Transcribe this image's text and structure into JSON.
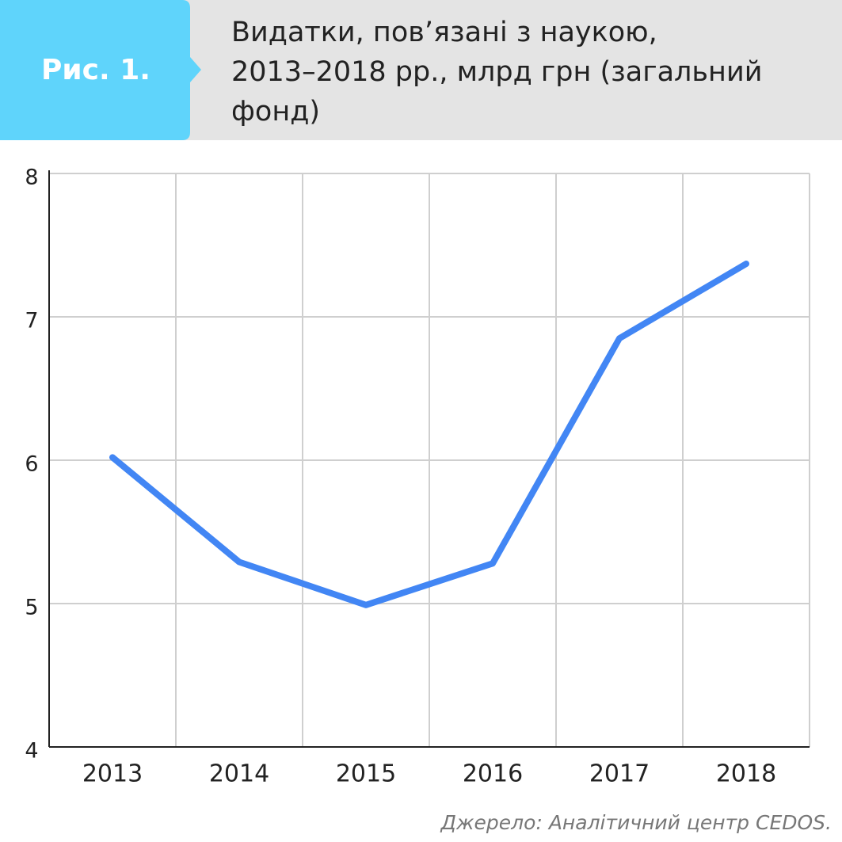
{
  "figure_label": "Рис. 1.",
  "chart_data": {
    "type": "line",
    "title": [
      "Видатки, пов’язані з наукою,",
      "2013–2018 рр., млрд грн (загальний",
      "фонд)"
    ],
    "categories": [
      "2013",
      "2014",
      "2015",
      "2016",
      "2017",
      "2018"
    ],
    "values": [
      6.02,
      5.29,
      4.99,
      5.28,
      6.85,
      7.37
    ],
    "color": "#4286f4",
    "ylim": [
      4,
      8
    ],
    "yticks": [
      4,
      5,
      6,
      7,
      8
    ],
    "grid": true
  },
  "source": "Джерело: Аналітичний центр CEDOS."
}
